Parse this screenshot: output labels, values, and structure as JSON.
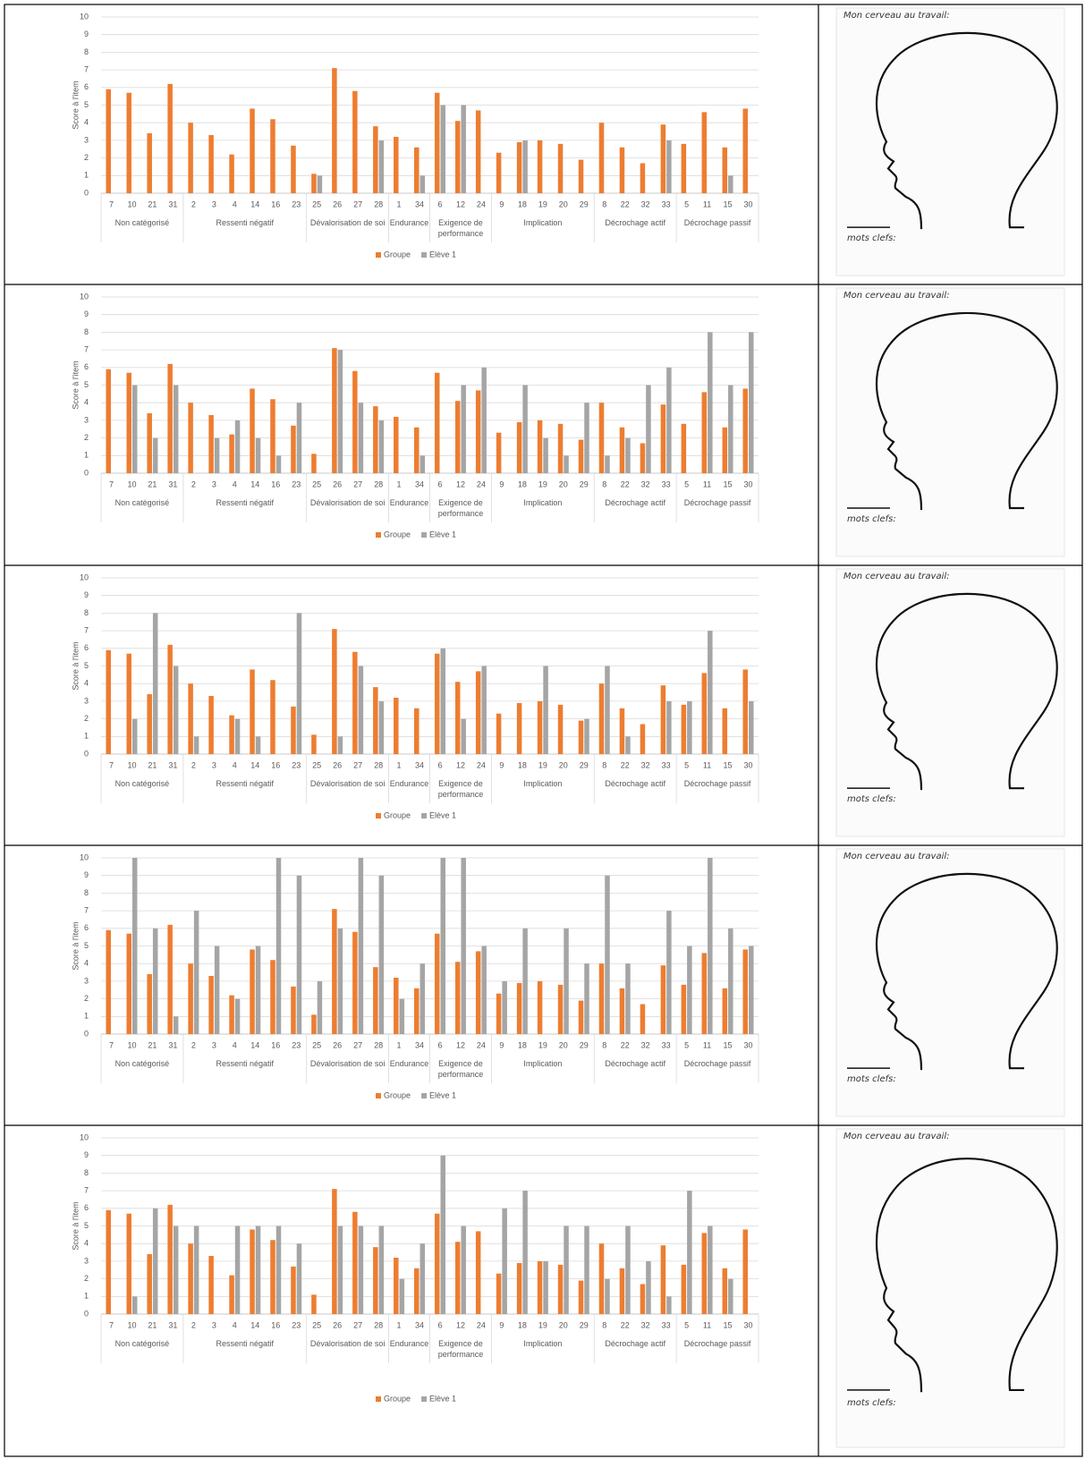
{
  "chart_data": [
    {
      "type": "bar",
      "y_label": "Score à l'item",
      "category_groups": [
        {
          "name": "Non catégorisé",
          "categories": [
            "7",
            "10",
            "21",
            "31"
          ]
        },
        {
          "name": "Ressenti négatif",
          "categories": [
            "2",
            "3",
            "4",
            "14",
            "16",
            "23"
          ]
        },
        {
          "name": "Dévalorisation de soi",
          "categories": [
            "25",
            "26",
            "27",
            "28"
          ]
        },
        {
          "name": "Endurance",
          "categories": [
            "1",
            "34"
          ]
        },
        {
          "name": "Exigence de performance",
          "categories": [
            "6",
            "12",
            "24"
          ]
        },
        {
          "name": "Implication",
          "categories": [
            "9",
            "18",
            "19",
            "20",
            "29"
          ]
        },
        {
          "name": "Décrochage actif",
          "categories": [
            "8",
            "22",
            "32",
            "33"
          ]
        },
        {
          "name": "Décrochage passif",
          "categories": [
            "5",
            "11",
            "15",
            "30"
          ]
        }
      ],
      "series": [
        {
          "name": "Groupe",
          "color": "#ED7D31",
          "values": [
            5.9,
            5.7,
            3.4,
            6.2,
            4.0,
            3.3,
            2.2,
            4.8,
            4.2,
            2.7,
            1.1,
            7.1,
            5.8,
            3.8,
            3.2,
            2.6,
            5.7,
            4.1,
            4.7,
            2.3,
            2.9,
            3.0,
            2.8,
            1.9,
            4.0,
            2.6,
            1.7,
            3.9,
            2.8,
            4.6,
            2.6,
            4.8
          ]
        },
        {
          "name": "Elève 1",
          "color": "#A5A5A5",
          "values": [
            0,
            0,
            0,
            0,
            0,
            0,
            0,
            0,
            0,
            0,
            1,
            0,
            0,
            3,
            0,
            1,
            5,
            5,
            0,
            0,
            3,
            0,
            0,
            0,
            0,
            0,
            0,
            3,
            0,
            0,
            1,
            0
          ]
        }
      ],
      "ylim": [
        0,
        10
      ],
      "yticks": [
        0,
        1,
        2,
        3,
        4,
        5,
        6,
        7,
        8,
        9,
        10
      ],
      "grid": true,
      "legend": "bottom"
    },
    {
      "type": "bar",
      "y_label": "Score à l'item",
      "category_groups": [
        {
          "name": "Non catégorisé",
          "categories": [
            "7",
            "10",
            "21",
            "31"
          ]
        },
        {
          "name": "Ressenti négatif",
          "categories": [
            "2",
            "3",
            "4",
            "14",
            "16",
            "23"
          ]
        },
        {
          "name": "Dévalorisation de soi",
          "categories": [
            "25",
            "26",
            "27",
            "28"
          ]
        },
        {
          "name": "Endurance",
          "categories": [
            "1",
            "34"
          ]
        },
        {
          "name": "Exigence de performance",
          "categories": [
            "6",
            "12",
            "24"
          ]
        },
        {
          "name": "Implication",
          "categories": [
            "9",
            "18",
            "19",
            "20",
            "29"
          ]
        },
        {
          "name": "Décrochage actif",
          "categories": [
            "8",
            "22",
            "32",
            "33"
          ]
        },
        {
          "name": "Décrochage passif",
          "categories": [
            "5",
            "11",
            "15",
            "30"
          ]
        }
      ],
      "series": [
        {
          "name": "Groupe",
          "color": "#ED7D31",
          "values": [
            5.9,
            5.7,
            3.4,
            6.2,
            4.0,
            3.3,
            2.2,
            4.8,
            4.2,
            2.7,
            1.1,
            7.1,
            5.8,
            3.8,
            3.2,
            2.6,
            5.7,
            4.1,
            4.7,
            2.3,
            2.9,
            3.0,
            2.8,
            1.9,
            4.0,
            2.6,
            1.7,
            3.9,
            2.8,
            4.6,
            2.6,
            4.8
          ]
        },
        {
          "name": "Elève 1",
          "color": "#A5A5A5",
          "values": [
            0,
            5,
            2,
            5,
            0,
            2,
            3,
            2,
            1,
            4,
            0,
            7,
            4,
            3,
            0,
            1,
            0,
            5,
            6,
            0,
            5,
            2,
            1,
            4,
            1,
            2,
            5,
            6,
            0,
            8,
            5,
            8
          ]
        }
      ],
      "ylim": [
        0,
        10
      ],
      "yticks": [
        0,
        1,
        2,
        3,
        4,
        5,
        6,
        7,
        8,
        9,
        10
      ],
      "grid": true,
      "legend": "bottom"
    },
    {
      "type": "bar",
      "y_label": "Score à l'item",
      "category_groups": [
        {
          "name": "Non catégorisé",
          "categories": [
            "7",
            "10",
            "21",
            "31"
          ]
        },
        {
          "name": "Ressenti négatif",
          "categories": [
            "2",
            "3",
            "4",
            "14",
            "16",
            "23"
          ]
        },
        {
          "name": "Dévalorisation de soi",
          "categories": [
            "25",
            "26",
            "27",
            "28"
          ]
        },
        {
          "name": "Endurance",
          "categories": [
            "1",
            "34"
          ]
        },
        {
          "name": "Exigence de performance",
          "categories": [
            "6",
            "12",
            "24"
          ]
        },
        {
          "name": "Implication",
          "categories": [
            "9",
            "18",
            "19",
            "20",
            "29"
          ]
        },
        {
          "name": "Décrochage actif",
          "categories": [
            "8",
            "22",
            "32",
            "33"
          ]
        },
        {
          "name": "Décrochage passif",
          "categories": [
            "5",
            "11",
            "15",
            "30"
          ]
        }
      ],
      "series": [
        {
          "name": "Groupe",
          "color": "#ED7D31",
          "values": [
            5.9,
            5.7,
            3.4,
            6.2,
            4.0,
            3.3,
            2.2,
            4.8,
            4.2,
            2.7,
            1.1,
            7.1,
            5.8,
            3.8,
            3.2,
            2.6,
            5.7,
            4.1,
            4.7,
            2.3,
            2.9,
            3.0,
            2.8,
            1.9,
            4.0,
            2.6,
            1.7,
            3.9,
            2.8,
            4.6,
            2.6,
            4.8
          ]
        },
        {
          "name": "Elève 1",
          "color": "#A5A5A5",
          "values": [
            0,
            2,
            8,
            5,
            1,
            0,
            2,
            1,
            0,
            8,
            0,
            1,
            5,
            3,
            0,
            0,
            6,
            2,
            5,
            0,
            0,
            5,
            0,
            2,
            5,
            1,
            0,
            3,
            3,
            7,
            0,
            3
          ]
        }
      ],
      "ylim": [
        0,
        10
      ],
      "yticks": [
        0,
        1,
        2,
        3,
        4,
        5,
        6,
        7,
        8,
        9,
        10
      ],
      "grid": true,
      "legend": "bottom"
    },
    {
      "type": "bar",
      "y_label": "Score à l'item",
      "category_groups": [
        {
          "name": "Non catégorisé",
          "categories": [
            "7",
            "10",
            "21",
            "31"
          ]
        },
        {
          "name": "Ressenti négatif",
          "categories": [
            "2",
            "3",
            "4",
            "14",
            "16",
            "23"
          ]
        },
        {
          "name": "Dévalorisation de soi",
          "categories": [
            "25",
            "26",
            "27",
            "28"
          ]
        },
        {
          "name": "Endurance",
          "categories": [
            "1",
            "34"
          ]
        },
        {
          "name": "Exigence de performance",
          "categories": [
            "6",
            "12",
            "24"
          ]
        },
        {
          "name": "Implication",
          "categories": [
            "9",
            "18",
            "19",
            "20",
            "29"
          ]
        },
        {
          "name": "Décrochage actif",
          "categories": [
            "8",
            "22",
            "32",
            "33"
          ]
        },
        {
          "name": "Décrochage passif",
          "categories": [
            "5",
            "11",
            "15",
            "30"
          ]
        }
      ],
      "series": [
        {
          "name": "Groupe",
          "color": "#ED7D31",
          "values": [
            5.9,
            5.7,
            3.4,
            6.2,
            4.0,
            3.3,
            2.2,
            4.8,
            4.2,
            2.7,
            1.1,
            7.1,
            5.8,
            3.8,
            3.2,
            2.6,
            5.7,
            4.1,
            4.7,
            2.3,
            2.9,
            3.0,
            2.8,
            1.9,
            4.0,
            2.6,
            1.7,
            3.9,
            2.8,
            4.6,
            2.6,
            4.8
          ]
        },
        {
          "name": "Elève 1",
          "color": "#A5A5A5",
          "values": [
            0,
            10,
            6,
            1,
            7,
            5,
            2,
            5,
            10,
            9,
            3,
            6,
            10,
            9,
            2,
            4,
            10,
            10,
            5,
            3,
            6,
            0,
            6,
            4,
            9,
            4,
            0,
            7,
            5,
            10,
            6,
            5
          ]
        }
      ],
      "ylim": [
        0,
        10
      ],
      "yticks": [
        0,
        1,
        2,
        3,
        4,
        5,
        6,
        7,
        8,
        9,
        10
      ],
      "grid": true,
      "legend": "bottom"
    },
    {
      "type": "bar",
      "y_label": "Score à l'item",
      "category_groups": [
        {
          "name": "Non catégorisé",
          "categories": [
            "7",
            "10",
            "21",
            "31"
          ]
        },
        {
          "name": "Ressenti négatif",
          "categories": [
            "2",
            "3",
            "4",
            "14",
            "16",
            "23"
          ]
        },
        {
          "name": "Dévalorisation de soi",
          "categories": [
            "25",
            "26",
            "27",
            "28"
          ]
        },
        {
          "name": "Endurance",
          "categories": [
            "1",
            "34"
          ]
        },
        {
          "name": "Exigence de performance",
          "categories": [
            "6",
            "12",
            "24"
          ]
        },
        {
          "name": "Implication",
          "categories": [
            "9",
            "18",
            "19",
            "20",
            "29"
          ]
        },
        {
          "name": "Décrochage actif",
          "categories": [
            "8",
            "22",
            "32",
            "33"
          ]
        },
        {
          "name": "Décrochage passif",
          "categories": [
            "5",
            "11",
            "15",
            "30"
          ]
        }
      ],
      "series": [
        {
          "name": "Groupe",
          "color": "#ED7D31",
          "values": [
            5.9,
            5.7,
            3.4,
            6.2,
            4.0,
            3.3,
            2.2,
            4.8,
            4.2,
            2.7,
            1.1,
            7.1,
            5.8,
            3.8,
            3.2,
            2.6,
            5.7,
            4.1,
            4.7,
            2.3,
            2.9,
            3.0,
            2.8,
            1.9,
            4.0,
            2.6,
            1.7,
            3.9,
            2.8,
            4.6,
            2.6,
            4.8
          ]
        },
        {
          "name": "Elève 1",
          "color": "#A5A5A5",
          "values": [
            0,
            1,
            6,
            5,
            5,
            0,
            5,
            5,
            5,
            4,
            0,
            5,
            5,
            5,
            2,
            4,
            9,
            5,
            0,
            6,
            7,
            3,
            5,
            5,
            2,
            5,
            3,
            1,
            7,
            5,
            2,
            0
          ]
        }
      ],
      "ylim": [
        0,
        10
      ],
      "yticks": [
        0,
        1,
        2,
        3,
        4,
        5,
        6,
        7,
        8,
        9,
        10
      ],
      "grid": true,
      "legend": "bottom"
    }
  ],
  "drawings": [
    {
      "title": "Mon cerveau au travail:",
      "keywords_label": "mots clefs:"
    },
    {
      "title": "Mon cerveau au travail:",
      "keywords_label": "mots clefs:"
    },
    {
      "title": "Mon cerveau au travail:",
      "keywords_label": "mots clefs:"
    },
    {
      "title": "Mon cerveau au travail:",
      "keywords_label": "mots clefs:"
    },
    {
      "title": "Mon cerveau au travail:",
      "keywords_label": "mots clefs:"
    }
  ]
}
